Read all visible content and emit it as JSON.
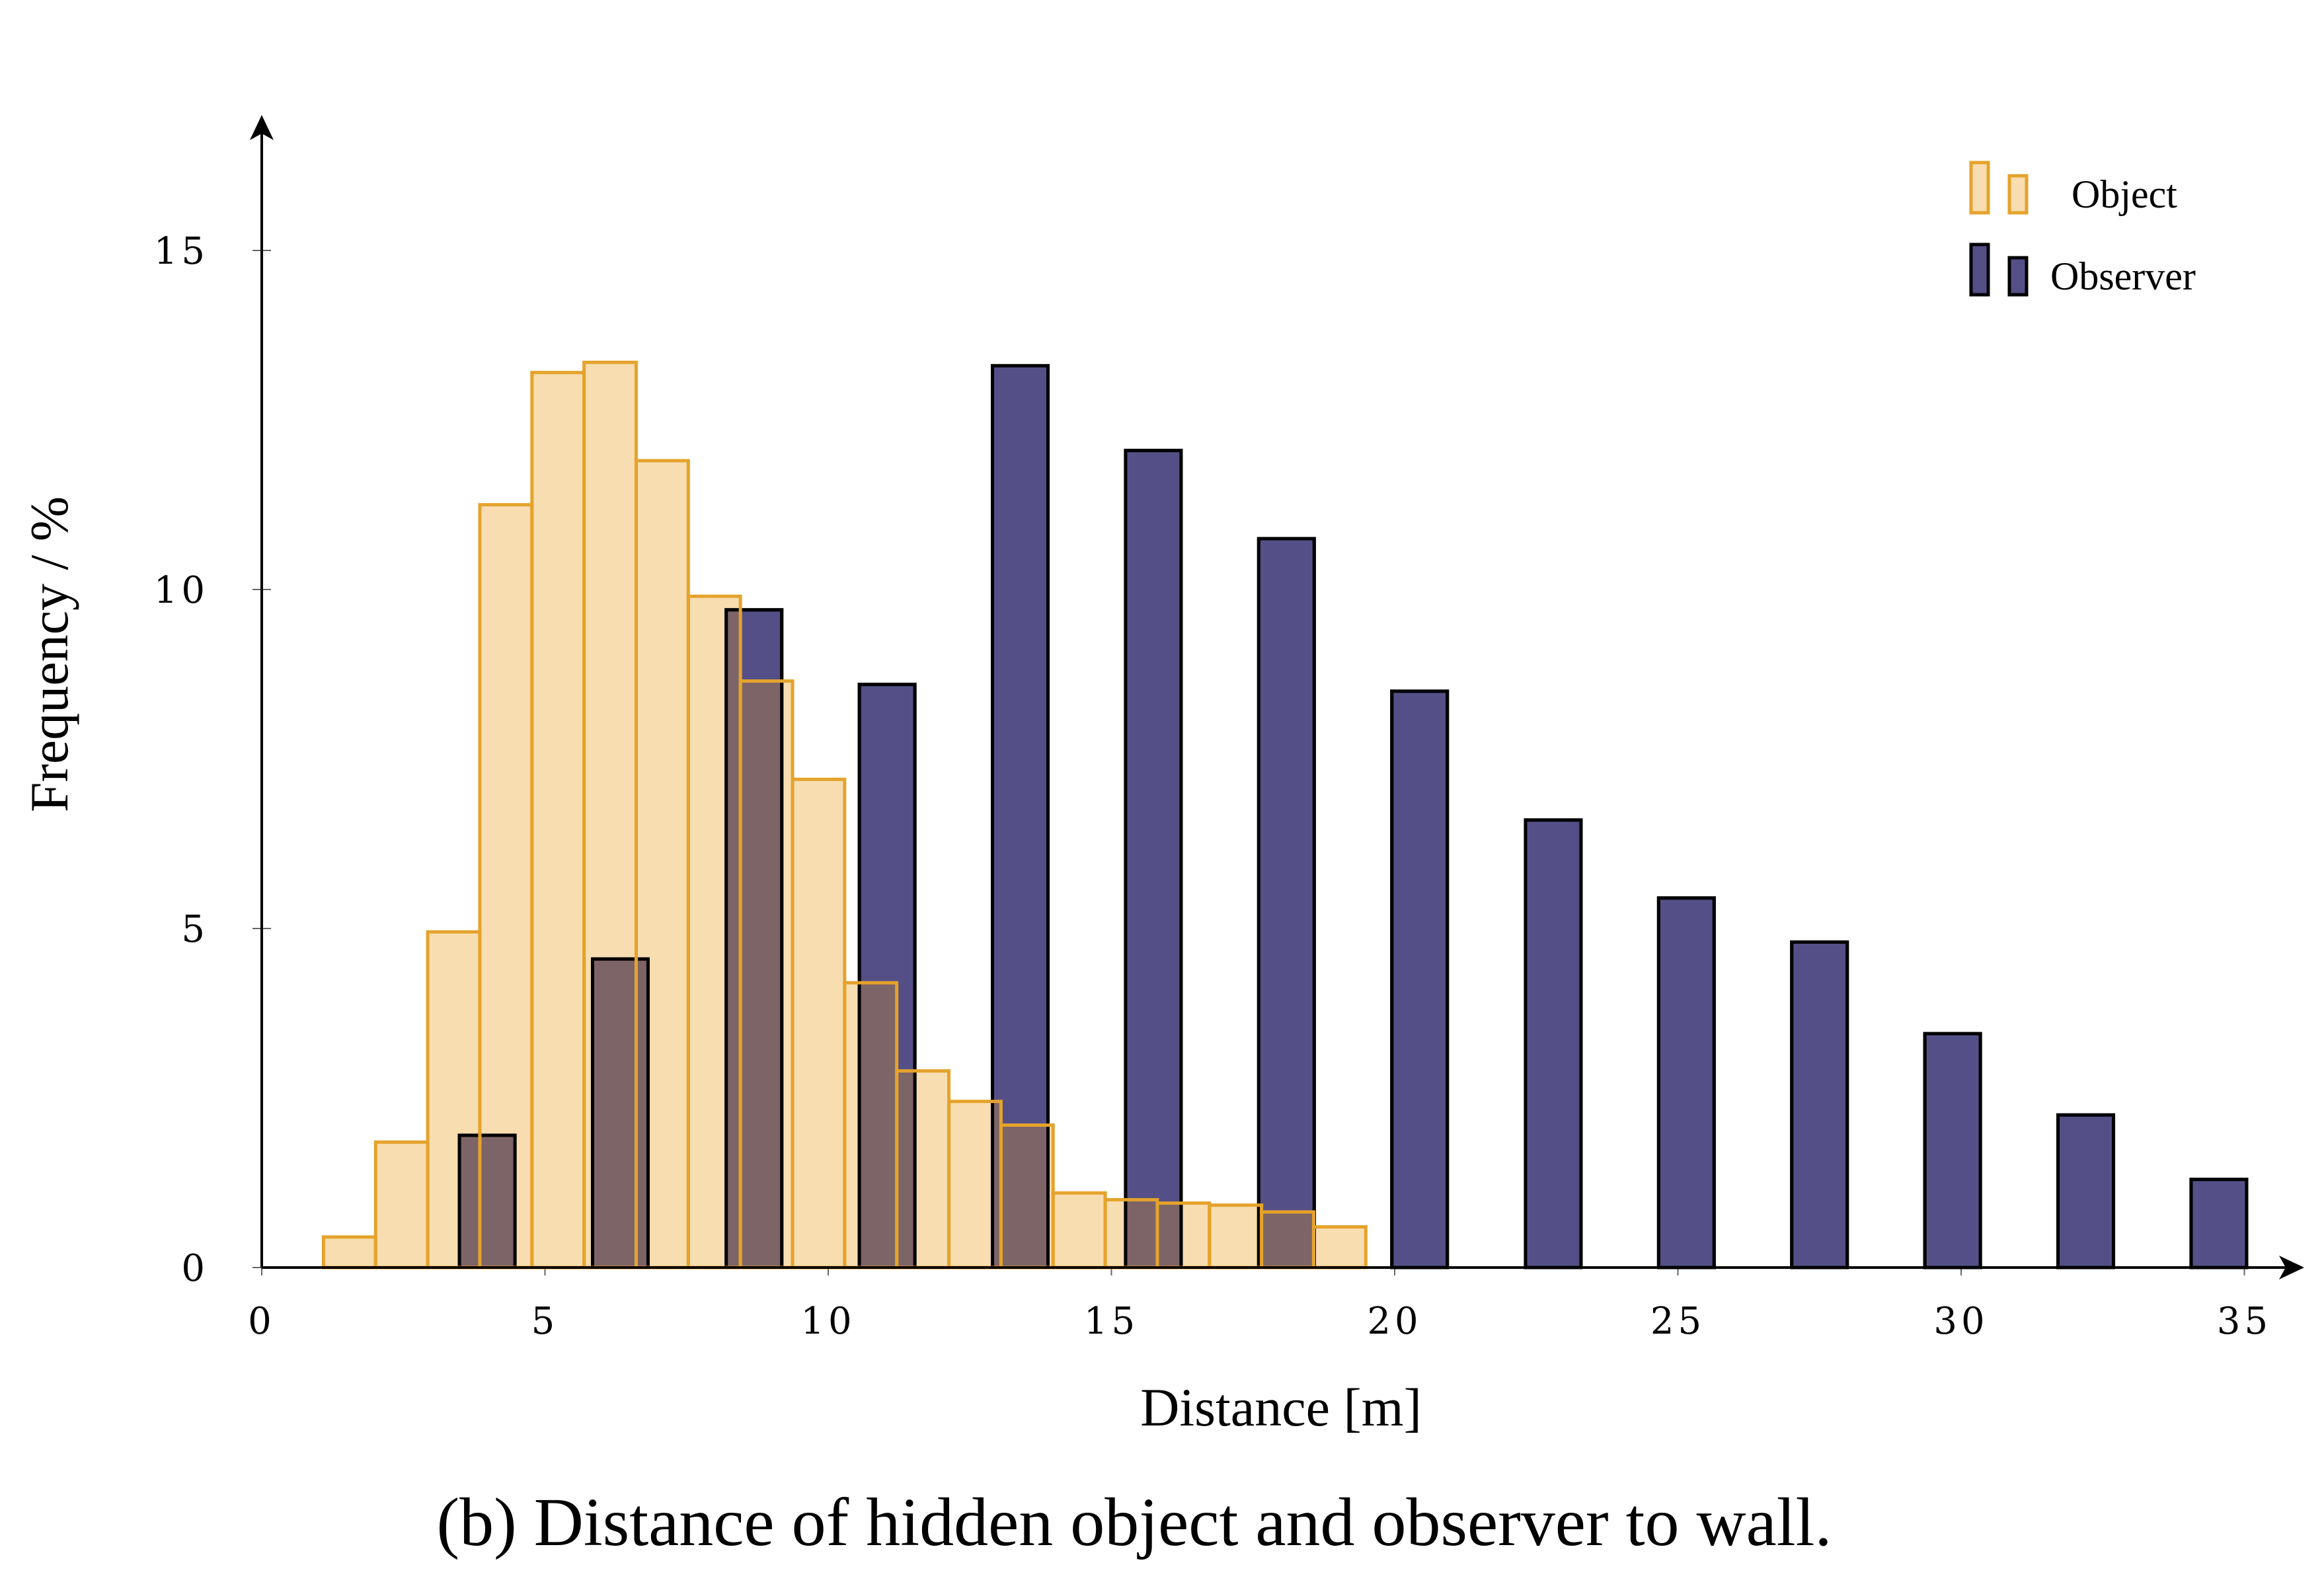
{
  "caption": "(b) Distance of hidden object and observer to wall.",
  "colors": {
    "object_fill": "#f7ddb0",
    "object_stroke": "#e5a32c",
    "observer_fill": "#545087",
    "observer_stroke": "#000000",
    "overlap_fill": "#7d6467"
  },
  "chart_data": {
    "type": "bar",
    "title": "",
    "xlabel": "Distance [m]",
    "ylabel": "Frequency / %",
    "xlim": [
      0,
      36
    ],
    "ylim": [
      0,
      17
    ],
    "xticks": [
      0,
      5,
      10,
      15,
      20,
      25,
      30,
      35
    ],
    "yticks": [
      0,
      5,
      10,
      15
    ],
    "grid": false,
    "legend": "top-right",
    "series": [
      {
        "name": "Object",
        "bin_width": 0.92,
        "x": [
          1.55,
          2.47,
          3.39,
          4.31,
          5.23,
          6.15,
          7.07,
          7.99,
          8.91,
          9.83,
          10.75,
          11.67,
          12.59,
          13.51,
          14.43,
          15.35,
          16.27,
          17.19,
          18.11,
          19.03
        ],
        "values": [
          0.45,
          1.85,
          4.95,
          11.25,
          13.2,
          13.35,
          11.9,
          9.9,
          8.65,
          7.2,
          4.2,
          2.9,
          2.45,
          2.1,
          1.1,
          1.0,
          0.95,
          0.92,
          0.82,
          0.6
        ]
      },
      {
        "name": "Observer",
        "bin_width": 0.98,
        "x": [
          3.98,
          6.33,
          8.69,
          11.04,
          13.39,
          15.74,
          18.09,
          20.44,
          22.8,
          25.15,
          27.5,
          29.85,
          32.2,
          34.55
        ],
        "values": [
          1.95,
          4.55,
          9.7,
          8.6,
          13.3,
          12.05,
          10.75,
          8.5,
          6.6,
          5.45,
          4.8,
          3.45,
          2.25,
          1.3
        ]
      }
    ]
  }
}
